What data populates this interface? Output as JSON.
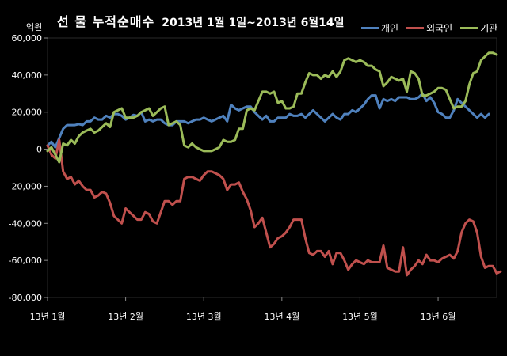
{
  "title": {
    "main": "선 물 누적순매수",
    "sub": "2013년 1월 1일~2013년 6월14일"
  },
  "chart_data": {
    "type": "line",
    "unit_label": "억원",
    "ylim": [
      -80000,
      60000
    ],
    "yticks": [
      60000,
      40000,
      20000,
      0,
      -20000,
      -40000,
      -60000,
      -80000
    ],
    "ytick_labels": [
      "60,000",
      "40,000",
      "20,000",
      "0",
      "-20,000",
      "-40,000",
      "-60,000",
      "-80,000"
    ],
    "xlim": [
      0,
      115
    ],
    "xtick_positions": [
      0,
      20,
      40,
      60,
      80,
      100
    ],
    "xtick_labels": [
      "13년 1월",
      "13년 2월",
      "13년 3월",
      "13년 4월",
      "13년 5월",
      "13년 6월"
    ],
    "grid": false,
    "legend_position": "top-right",
    "series": [
      {
        "name": "개인",
        "color": "#4f81bd",
        "values": [
          2000,
          4000,
          1000,
          6000,
          11000,
          13000,
          13000,
          13000,
          13500,
          13000,
          15000,
          15000,
          17000,
          16000,
          16000,
          18000,
          17000,
          19000,
          19000,
          18000,
          16000,
          17000,
          18500,
          18000,
          20000,
          15000,
          16000,
          15000,
          16000,
          16000,
          14000,
          13000,
          13000,
          15000,
          15000,
          15000,
          14000,
          15000,
          16000,
          16000,
          17000,
          16000,
          15000,
          16000,
          17000,
          18000,
          15000,
          24000,
          22000,
          21000,
          22000,
          23000,
          23000,
          20000,
          18000,
          16000,
          18000,
          15000,
          15000,
          17000,
          17000,
          17000,
          19000,
          18000,
          18000,
          19000,
          17000,
          19000,
          21000,
          19000,
          17000,
          15000,
          17000,
          19000,
          17000,
          16000,
          19000,
          19000,
          21000,
          20000,
          22000,
          24000,
          27000,
          29000,
          29000,
          22000,
          27000,
          26000,
          27000,
          26000,
          28000,
          28000,
          28000,
          27000,
          27000,
          28000,
          30000,
          26000,
          28000,
          25000,
          20000,
          19000,
          17000,
          17000,
          21000,
          27000,
          25000,
          23000,
          21000,
          19000,
          17000,
          19000,
          17000,
          19000
        ]
      },
      {
        "name": "외국인",
        "color": "#c0504d",
        "values": [
          2000,
          -3000,
          -5000,
          5000,
          -12000,
          -16000,
          -15000,
          -19000,
          -17000,
          -20000,
          -22000,
          -22000,
          -26000,
          -25000,
          -23000,
          -24000,
          -29000,
          -36000,
          -38000,
          -40000,
          -32000,
          -34000,
          -36000,
          -38000,
          -38000,
          -34000,
          -35000,
          -39000,
          -40000,
          -34000,
          -28000,
          -28000,
          -30000,
          -28000,
          -28000,
          -16000,
          -15000,
          -15000,
          -16000,
          -17000,
          -14000,
          -12000,
          -12000,
          -13000,
          -14000,
          -16000,
          -22000,
          -19000,
          -19000,
          -18000,
          -23000,
          -27000,
          -33000,
          -42000,
          -40000,
          -37000,
          -45000,
          -53000,
          -51000,
          -48000,
          -47000,
          -45000,
          -42000,
          -38000,
          -38000,
          -38000,
          -48000,
          -56000,
          -57000,
          -55000,
          -55000,
          -58000,
          -55000,
          -62000,
          -56000,
          -56000,
          -60000,
          -65000,
          -62000,
          -60000,
          -61000,
          -62000,
          -60000,
          -61000,
          -61000,
          -61000,
          -52000,
          -64000,
          -65000,
          -66000,
          -66000,
          -53000,
          -68000,
          -65000,
          -63000,
          -60000,
          -62000,
          -57000,
          -60000,
          -60000,
          -61000,
          -59000,
          -58000,
          -57000,
          -59000,
          -55000,
          -45000,
          -40000,
          -38000,
          -39000,
          -45000,
          -58000,
          -64000,
          -63000,
          -63000,
          -67000,
          -66000
        ]
      },
      {
        "name": "기관",
        "color": "#9bbb59",
        "values": [
          -1000,
          1000,
          -3000,
          -7000,
          3000,
          2000,
          5000,
          3000,
          7000,
          9000,
          10000,
          11000,
          9000,
          10000,
          12000,
          14000,
          12000,
          20000,
          21000,
          22000,
          17000,
          17000,
          17000,
          18000,
          20000,
          21000,
          22000,
          18000,
          20000,
          22000,
          23000,
          13000,
          14000,
          15000,
          13000,
          2000,
          1000,
          3000,
          1000,
          0,
          -1000,
          -1000,
          -1000,
          0,
          1000,
          5000,
          4000,
          4000,
          5000,
          11000,
          11000,
          21000,
          22000,
          21000,
          26000,
          31000,
          31000,
          30000,
          31000,
          25000,
          26000,
          22000,
          22000,
          23000,
          30000,
          30000,
          36000,
          41000,
          40000,
          40000,
          38000,
          40000,
          39000,
          42000,
          39000,
          42000,
          48000,
          49000,
          48000,
          47000,
          48000,
          47000,
          45000,
          45000,
          43000,
          42000,
          34000,
          36000,
          39000,
          38000,
          37000,
          38000,
          31000,
          42000,
          41000,
          38000,
          29000,
          29000,
          30000,
          31000,
          33000,
          33000,
          32000,
          27000,
          22000,
          23000,
          23000,
          26000,
          35000,
          41000,
          42000,
          48000,
          50000,
          52000,
          52000,
          51000
        ]
      }
    ]
  }
}
